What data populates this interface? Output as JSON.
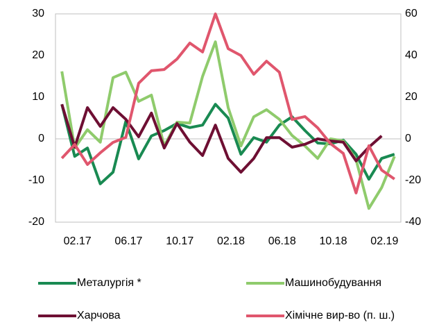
{
  "chart_data": {
    "type": "line",
    "categories": [
      null,
      "02.17",
      null,
      null,
      null,
      "06.17",
      null,
      null,
      null,
      "10.17",
      null,
      null,
      null,
      "02.18",
      null,
      null,
      null,
      "06.18",
      null,
      null,
      null,
      "10.18",
      null,
      null,
      null,
      "02.19",
      null
    ],
    "ylim": [
      -20,
      30
    ],
    "yticks": [
      -20,
      -10,
      0,
      10,
      20,
      30
    ],
    "y2lim": [
      -40,
      60
    ],
    "y2ticks": [
      -40,
      -20,
      0,
      20,
      40,
      60
    ],
    "series": [
      {
        "name": "Металургія *",
        "color": "#198a52",
        "values": [
          8.3,
          -4.2,
          -2.2,
          -10.8,
          -8,
          4.2,
          -4.8,
          0.7,
          2,
          3.7,
          2.7,
          3.3,
          8.3,
          5,
          -3.7,
          0.3,
          -0.8,
          3.3,
          5.3,
          2,
          -1,
          -1.2,
          -0.3,
          -3.7,
          -9.7,
          -4.7,
          -3.7
        ]
      },
      {
        "name": "Машинобудування",
        "color": "#8fcb6c",
        "values": [
          16.2,
          -2.2,
          2.2,
          -0.8,
          14.7,
          16,
          9,
          10.5,
          -1.7,
          4,
          3.8,
          15,
          23.3,
          7.5,
          -1.7,
          5.3,
          7,
          4.7,
          0.8,
          -1.7,
          -4.7,
          0,
          -0.5,
          -5,
          -16.7,
          -11.7,
          -4.2
        ]
      },
      {
        "name": "Харчова",
        "color": "#6e0f33",
        "values": [
          8.3,
          -2,
          7.5,
          3,
          7.5,
          4.7,
          0.5,
          6.2,
          -2.2,
          3.7,
          -0.8,
          -4,
          3.3,
          -4.7,
          -8,
          -4.7,
          0.3,
          0.3,
          -2,
          -1.3,
          0,
          -0.5,
          -0.8,
          -5.3,
          -2,
          0.7,
          null
        ]
      },
      {
        "name": "Хімічне вир-во (п. ш.)",
        "color": "#e0566d",
        "axis": "y2",
        "values": [
          -9.3,
          -2.7,
          -12.3,
          -6.7,
          -1.7,
          0.7,
          26.7,
          32.7,
          33.3,
          38.3,
          46,
          41.7,
          60,
          43.3,
          40,
          31,
          37.3,
          32,
          9.3,
          10.7,
          5.3,
          -2.3,
          -7,
          -26,
          -3.3,
          -15,
          -19.3
        ]
      }
    ]
  }
}
